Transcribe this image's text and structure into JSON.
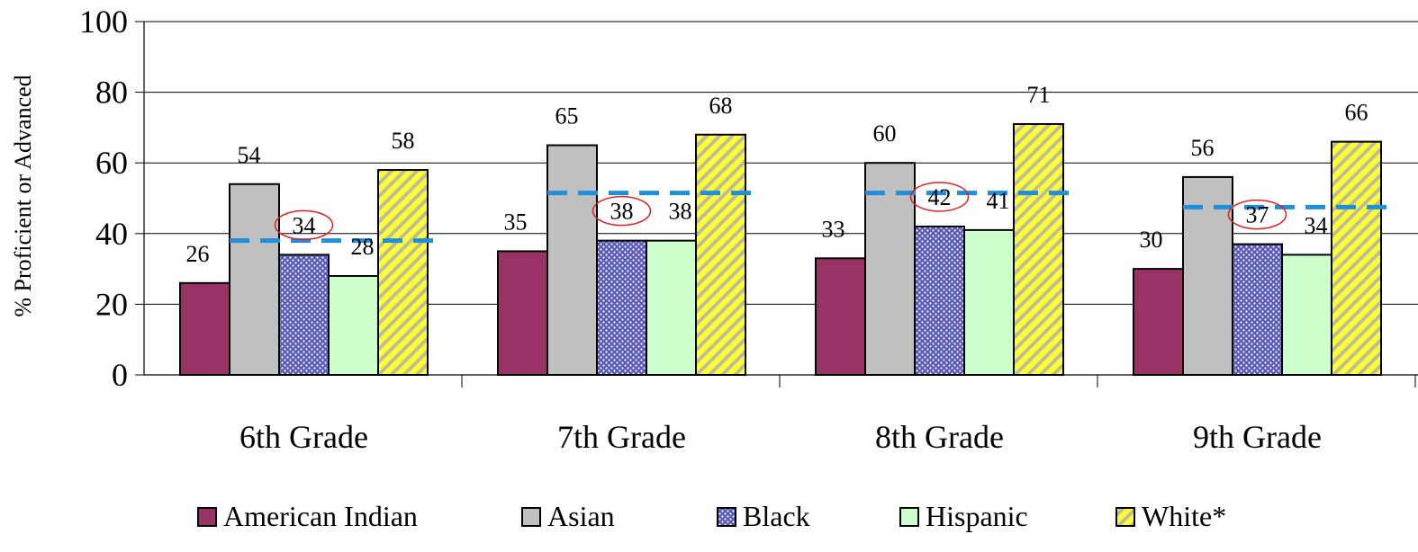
{
  "chart_data": {
    "type": "bar",
    "ylabel": "% Proficient or Advanced",
    "ylim": [
      0,
      100
    ],
    "yticks": [
      0,
      20,
      40,
      60,
      80,
      100
    ],
    "grid": true,
    "legend_position": "bottom",
    "categories": [
      "6th Grade",
      "7th Grade",
      "8th Grade",
      "9th Grade"
    ],
    "series": [
      {
        "name": "American Indian",
        "values": [
          26,
          35,
          33,
          30
        ],
        "color": "#993366",
        "pattern": "solid"
      },
      {
        "name": "Asian",
        "values": [
          54,
          65,
          60,
          56
        ],
        "color": "#c0c0c0",
        "pattern": "solid"
      },
      {
        "name": "Black",
        "values": [
          34,
          38,
          42,
          37
        ],
        "color": "#6666cc",
        "pattern": "dots"
      },
      {
        "name": "Hispanic",
        "values": [
          28,
          38,
          41,
          34
        ],
        "color": "#ccffcc",
        "pattern": "solid"
      },
      {
        "name": "White*",
        "values": [
          58,
          68,
          71,
          66
        ],
        "color": "#ffff33",
        "pattern": "stripes"
      }
    ],
    "reference_lines": {
      "values": [
        38,
        51.5,
        51.5,
        47.5
      ],
      "color": "#1f8fdc",
      "style": "dashed"
    },
    "highlighted_series": "Black",
    "highlight_color": "#e02020"
  }
}
